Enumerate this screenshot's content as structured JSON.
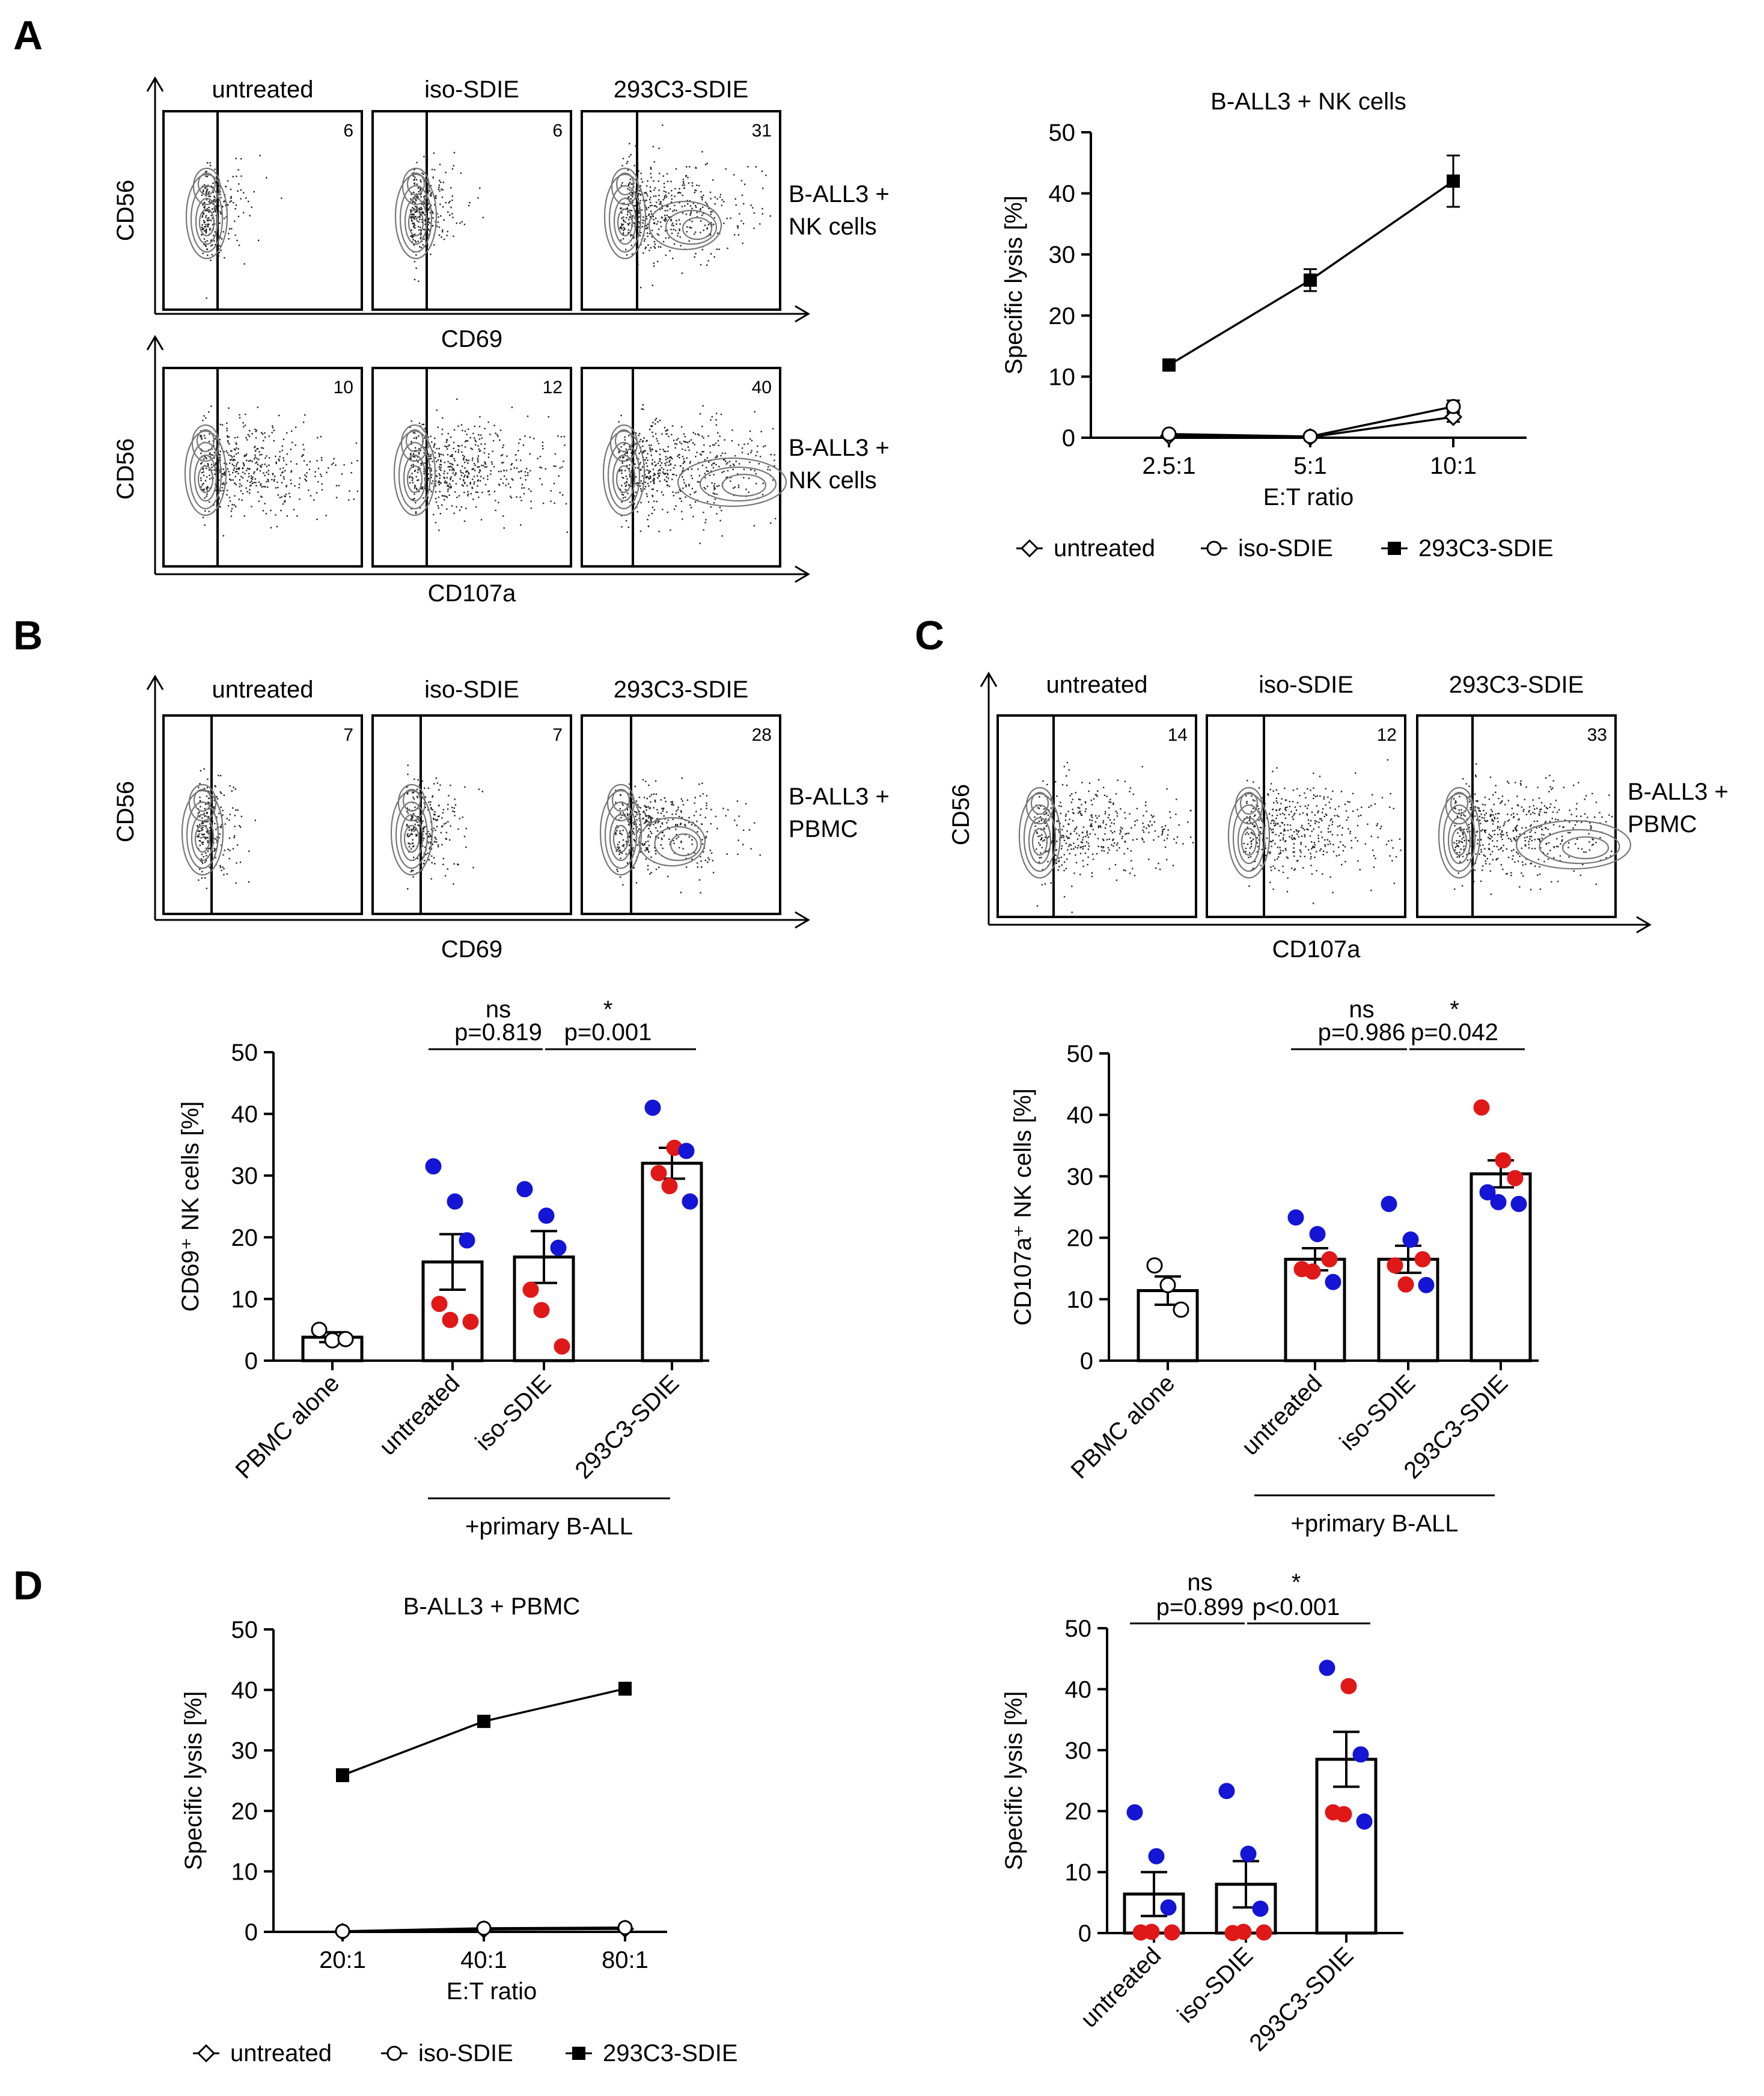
{
  "panels": {
    "A": {
      "label": "A",
      "flow_rows": [
        {
          "y_axis": "CD56",
          "x_axis": "CD69",
          "sample_label": [
            "B-ALL3 +",
            "NK cells"
          ],
          "conditions": [
            "untreated",
            "iso-SDIE",
            "293C3-SDIE"
          ],
          "percentages": [
            "6",
            "6",
            "31"
          ]
        },
        {
          "y_axis": "CD56",
          "x_axis": "CD107a",
          "sample_label": [
            "B-ALL3 +",
            "NK cells"
          ],
          "conditions": [
            "untreated",
            "iso-SDIE",
            "293C3-SDIE"
          ],
          "percentages": [
            "10",
            "12",
            "40"
          ]
        }
      ]
    },
    "B": {
      "label": "B",
      "flow": {
        "y_axis": "CD56",
        "x_axis": "CD69",
        "sample_label": [
          "B-ALL3 +",
          "PBMC"
        ],
        "conditions": [
          "untreated",
          "iso-SDIE",
          "293C3-SDIE"
        ],
        "percentages": [
          "7",
          "7",
          "28"
        ]
      }
    },
    "C": {
      "label": "C",
      "flow": {
        "y_axis": "CD56",
        "x_axis": "CD107a",
        "sample_label": [
          "B-ALL3 +",
          "PBMC"
        ],
        "conditions": [
          "untreated",
          "iso-SDIE",
          "293C3-SDIE"
        ],
        "percentages": [
          "14",
          "12",
          "33"
        ]
      }
    },
    "D": {
      "label": "D"
    }
  },
  "colors": {
    "blue": "#1515d6",
    "red": "#e01818",
    "black": "#000000"
  },
  "chart_data": [
    {
      "id": "A-lysis",
      "type": "line",
      "title": "B-ALL3 + NK cells",
      "xlabel": "E:T ratio",
      "ylabel": "Specific lysis  [%]",
      "categories": [
        "2.5:1",
        "5:1",
        "10:1"
      ],
      "ylim": [
        0,
        50
      ],
      "yticks": [
        0,
        10,
        20,
        30,
        40,
        50
      ],
      "series": [
        {
          "name": "untreated",
          "marker": "diamond",
          "values": [
            0.3,
            0.1,
            3.4
          ],
          "errors": [
            0.3,
            0.2,
            0.8
          ]
        },
        {
          "name": "iso-SDIE",
          "marker": "circle",
          "values": [
            0.6,
            0.2,
            5.1
          ],
          "errors": [
            0.3,
            0.2,
            1.0
          ]
        },
        {
          "name": "293C3-SDIE",
          "marker": "square",
          "values": [
            11.9,
            25.8,
            42.0
          ],
          "errors": [
            0.4,
            1.8,
            4.2
          ]
        }
      ],
      "legend": [
        "untreated",
        "iso-SDIE",
        "293C3-SDIE"
      ]
    },
    {
      "id": "B-bars",
      "type": "bar",
      "ylabel": "CD69⁺ NK cells [%]",
      "categories": [
        "PBMC alone",
        "untreated",
        "iso-SDIE",
        "293C3-SDIE"
      ],
      "group_label": "+primary B-ALL",
      "ylim": [
        0,
        50
      ],
      "yticks": [
        0,
        10,
        20,
        30,
        40,
        50
      ],
      "values": [
        3.8,
        16.0,
        16.8,
        32.0
      ],
      "errors": [
        0.8,
        4.5,
        4.2,
        2.5
      ],
      "points": [
        [
          {
            "v": 5.0,
            "c": "white"
          },
          {
            "v": 3.3,
            "c": "white"
          },
          {
            "v": 3.5,
            "c": "white"
          }
        ],
        [
          {
            "v": 31.5,
            "c": "blue"
          },
          {
            "v": 25.8,
            "c": "blue"
          },
          {
            "v": 19.5,
            "c": "blue"
          },
          {
            "v": 9.2,
            "c": "red"
          },
          {
            "v": 6.6,
            "c": "red"
          },
          {
            "v": 6.3,
            "c": "red"
          }
        ],
        [
          {
            "v": 27.8,
            "c": "blue"
          },
          {
            "v": 23.5,
            "c": "blue"
          },
          {
            "v": 18.3,
            "c": "blue"
          },
          {
            "v": 11.5,
            "c": "red"
          },
          {
            "v": 8.2,
            "c": "red"
          },
          {
            "v": 2.3,
            "c": "red"
          }
        ],
        [
          {
            "v": 41.0,
            "c": "blue"
          },
          {
            "v": 34.5,
            "c": "red"
          },
          {
            "v": 34.0,
            "c": "blue"
          },
          {
            "v": 30.4,
            "c": "red"
          },
          {
            "v": 28.3,
            "c": "red"
          },
          {
            "v": 25.8,
            "c": "blue"
          }
        ]
      ],
      "comparisons": [
        {
          "from": 1,
          "to": 2,
          "sig": "ns",
          "p": "p=0.819"
        },
        {
          "from": 2,
          "to": 3,
          "sig": "*",
          "p": "p=0.001"
        }
      ]
    },
    {
      "id": "C-bars",
      "type": "bar",
      "ylabel": "CD107a⁺ NK cells [%]",
      "categories": [
        "PBMC alone",
        "untreated",
        "iso-SDIE",
        "293C3-SDIE"
      ],
      "group_label": "+primary B-ALL",
      "ylim": [
        0,
        50
      ],
      "yticks": [
        0,
        10,
        20,
        30,
        40,
        50
      ],
      "values": [
        11.4,
        16.5,
        16.5,
        30.4
      ],
      "errors": [
        2.3,
        1.8,
        2.2,
        2.2
      ],
      "points": [
        [
          {
            "v": 15.5,
            "c": "white"
          },
          {
            "v": 12.3,
            "c": "white"
          },
          {
            "v": 8.3,
            "c": "white"
          }
        ],
        [
          {
            "v": 23.3,
            "c": "blue"
          },
          {
            "v": 20.6,
            "c": "blue"
          },
          {
            "v": 16.5,
            "c": "red"
          },
          {
            "v": 14.9,
            "c": "red"
          },
          {
            "v": 14.5,
            "c": "red"
          },
          {
            "v": 12.8,
            "c": "blue"
          }
        ],
        [
          {
            "v": 25.5,
            "c": "blue"
          },
          {
            "v": 19.7,
            "c": "blue"
          },
          {
            "v": 16.5,
            "c": "red"
          },
          {
            "v": 15.5,
            "c": "red"
          },
          {
            "v": 12.4,
            "c": "red"
          },
          {
            "v": 12.3,
            "c": "blue"
          }
        ],
        [
          {
            "v": 41.2,
            "c": "red"
          },
          {
            "v": 32.6,
            "c": "red"
          },
          {
            "v": 29.7,
            "c": "red"
          },
          {
            "v": 27.4,
            "c": "blue"
          },
          {
            "v": 25.8,
            "c": "blue"
          },
          {
            "v": 25.5,
            "c": "blue"
          }
        ]
      ],
      "comparisons": [
        {
          "from": 1,
          "to": 2,
          "sig": "ns",
          "p": "p=0.986"
        },
        {
          "from": 2,
          "to": 3,
          "sig": "*",
          "p": "p=0.042"
        }
      ]
    },
    {
      "id": "D-lysis",
      "type": "line",
      "title": "B-ALL3 + PBMC",
      "xlabel": "E:T ratio",
      "ylabel": "Specific lysis  [%]",
      "categories": [
        "20:1",
        "40:1",
        "80:1"
      ],
      "ylim": [
        0,
        50
      ],
      "yticks": [
        0,
        10,
        20,
        30,
        40,
        50
      ],
      "series": [
        {
          "name": "untreated",
          "marker": "diamond",
          "values": [
            0.0,
            0.4,
            0.5
          ],
          "errors": [
            0.2,
            0.2,
            0.2
          ]
        },
        {
          "name": "iso-SDIE",
          "marker": "circle",
          "values": [
            0.1,
            0.6,
            0.7
          ],
          "errors": [
            0.2,
            0.2,
            0.2
          ]
        },
        {
          "name": "293C3-SDIE",
          "marker": "square",
          "values": [
            25.9,
            34.8,
            40.2
          ],
          "errors": [
            1.0,
            0.5,
            1.0
          ]
        }
      ],
      "legend": [
        "untreated",
        "iso-SDIE",
        "293C3-SDIE"
      ]
    },
    {
      "id": "D-bars",
      "type": "bar",
      "ylabel": "Specific lysis  [%]",
      "categories": [
        "untreated",
        "iso-SDIE",
        "293C3-SDIE"
      ],
      "ylim": [
        0,
        50
      ],
      "yticks": [
        0,
        10,
        20,
        30,
        40,
        50
      ],
      "values": [
        6.4,
        8.0,
        28.5
      ],
      "errors": [
        3.6,
        3.8,
        4.5
      ],
      "points": [
        [
          {
            "v": 19.8,
            "c": "blue"
          },
          {
            "v": 12.6,
            "c": "blue"
          },
          {
            "v": 4.2,
            "c": "blue"
          },
          {
            "v": 0.1,
            "c": "red"
          },
          {
            "v": 0.2,
            "c": "red"
          },
          {
            "v": 0.1,
            "c": "red"
          }
        ],
        [
          {
            "v": 23.3,
            "c": "blue"
          },
          {
            "v": 13.0,
            "c": "blue"
          },
          {
            "v": 4.0,
            "c": "blue"
          },
          {
            "v": 0.0,
            "c": "red"
          },
          {
            "v": 0.2,
            "c": "red"
          },
          {
            "v": 0.1,
            "c": "red"
          }
        ],
        [
          {
            "v": 43.5,
            "c": "blue"
          },
          {
            "v": 40.5,
            "c": "red"
          },
          {
            "v": 29.3,
            "c": "blue"
          },
          {
            "v": 19.8,
            "c": "red"
          },
          {
            "v": 19.5,
            "c": "red"
          },
          {
            "v": 18.3,
            "c": "blue"
          }
        ]
      ],
      "comparisons": [
        {
          "from": 0,
          "to": 1,
          "sig": "ns",
          "p": "p=0.899"
        },
        {
          "from": 1,
          "to": 2,
          "sig": "*",
          "p": "p<0.001"
        }
      ]
    }
  ]
}
